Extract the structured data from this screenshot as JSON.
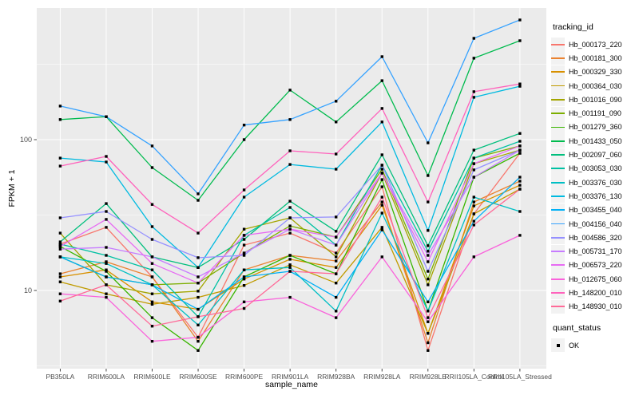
{
  "chart_data": {
    "type": "line",
    "title": "",
    "xlabel": "sample_name",
    "ylabel": "FPKM + 1",
    "y_scale": "log10",
    "ylim": [
      3.0,
      750
    ],
    "grid": true,
    "panel_bg": "#EBEBEB",
    "grid_color": "#FFFFFF",
    "tick_color": "#333333",
    "tick_label_color": "#4D4D4D",
    "marker_color": "#000000",
    "marker_shape": "square",
    "y_ticks": [
      {
        "label": "100",
        "value": 100
      },
      {
        "label": "10",
        "value": 10
      }
    ],
    "y_minor_gridlines": [
      3.162,
      31.62,
      316.2
    ],
    "categories": [
      "PB350LA",
      "RRIM600LA",
      "RRIM600LE",
      "RRIM600SE",
      "RRIM600PE",
      "RRIM901LA",
      "RRIM928BA",
      "RRIM928LA",
      "RRIM928LE",
      "RRII105LA_Control",
      "RRII105LA_Stressed"
    ],
    "legend": {
      "title": "tracking_id",
      "position": "right"
    },
    "quant_legend": {
      "title": "quant_status",
      "items": [
        {
          "label": "OK",
          "marker": "black-square"
        }
      ]
    },
    "series": [
      {
        "name": "Hb_000173_220",
        "color": "#F8766D",
        "values": [
          20.3,
          26.2,
          12.3,
          4.9,
          20.0,
          24.0,
          17.7,
          48.7,
          4.0,
          32.2,
          81.3
        ]
      },
      {
        "name": "Hb_000181_300",
        "color": "#EA8331",
        "values": [
          12.9,
          15.5,
          12.3,
          4.6,
          13.7,
          17.1,
          15.7,
          38.6,
          4.5,
          38.6,
          53.1
        ]
      },
      {
        "name": "Hb_000329_330",
        "color": "#D89000",
        "values": [
          12.3,
          13.7,
          8.4,
          7.5,
          11.9,
          16.1,
          14.2,
          36.8,
          5.2,
          36.4,
          49.9
        ]
      },
      {
        "name": "Hb_000364_030",
        "color": "#C09B00",
        "values": [
          11.4,
          9.5,
          8.1,
          9.0,
          10.8,
          14.8,
          11.2,
          26.2,
          5.2,
          32.2,
          47.0
        ]
      },
      {
        "name": "Hb_001016_090",
        "color": "#A3A500",
        "values": [
          24.0,
          10.9,
          9.5,
          9.9,
          25.5,
          30.3,
          16.7,
          60.0,
          10.9,
          69.3,
          85.3
        ]
      },
      {
        "name": "Hb_001191_090",
        "color": "#7CAE00",
        "values": [
          16.7,
          12.3,
          10.9,
          11.2,
          17.7,
          26.8,
          22.6,
          63.7,
          11.9,
          75.5,
          90.8
        ]
      },
      {
        "name": "Hb_001279_360",
        "color": "#39B600",
        "values": [
          19.6,
          13.4,
          6.6,
          4.0,
          12.3,
          17.1,
          12.9,
          54.3,
          7.3,
          56.4,
          81.3
        ]
      },
      {
        "name": "Hb_001433_050",
        "color": "#00BB4E",
        "values": [
          136,
          142,
          65.3,
          39.6,
          100,
          213,
          131,
          246,
          57.8,
          347,
          453
        ]
      },
      {
        "name": "Hb_002097_060",
        "color": "#00BF7D",
        "values": [
          21.0,
          37.7,
          16.7,
          14.2,
          21.8,
          39.1,
          24.7,
          79.3,
          19.8,
          85.3,
          110
        ]
      },
      {
        "name": "Hb_003053_030",
        "color": "#00C1A3",
        "values": [
          20.3,
          17.1,
          13.7,
          6.7,
          23.2,
          35.5,
          20.0,
          67.7,
          18.2,
          75.5,
          97.6
        ]
      },
      {
        "name": "Hb_003376_030",
        "color": "#00BFC4",
        "values": [
          16.7,
          15.1,
          10.9,
          5.9,
          13.7,
          14.2,
          7.3,
          32.6,
          7.3,
          41.6,
          33.4
        ]
      },
      {
        "name": "Hb_003376_130",
        "color": "#00BAE0",
        "values": [
          75.5,
          71.1,
          26.5,
          14.2,
          41.6,
          68.5,
          63.7,
          131,
          25.0,
          191,
          226
        ]
      },
      {
        "name": "Hb_003455_040",
        "color": "#00B0F6",
        "values": [
          16.7,
          12.3,
          10.9,
          7.5,
          12.3,
          13.4,
          9.0,
          25.2,
          8.4,
          28.8,
          56.4
        ]
      },
      {
        "name": "Hb_004156_040",
        "color": "#35A2FF",
        "values": [
          167,
          142,
          90.8,
          43.7,
          125,
          136,
          180,
          355,
          95.3,
          470,
          622
        ]
      },
      {
        "name": "Hb_004586_320",
        "color": "#9590FF",
        "values": [
          30.3,
          33.4,
          21.8,
          16.5,
          17.1,
          30.3,
          30.7,
          67.7,
          13.4,
          63.0,
          85.3
        ]
      },
      {
        "name": "Hb_005731_170",
        "color": "#C77CFF",
        "values": [
          18.8,
          19.3,
          16.7,
          12.3,
          17.7,
          25.5,
          20.0,
          60.0,
          17.1,
          56.4,
          85.3
        ]
      },
      {
        "name": "Hb_006573_220",
        "color": "#E76BF3",
        "values": [
          19.6,
          29.6,
          15.1,
          11.2,
          23.2,
          25.5,
          22.6,
          60.0,
          15.5,
          69.3,
          90.8
        ]
      },
      {
        "name": "Hb_012675_060",
        "color": "#FA62DB",
        "values": [
          9.5,
          9.0,
          4.6,
          4.9,
          8.4,
          9.0,
          6.6,
          16.7,
          6.2,
          16.7,
          23.2
        ]
      },
      {
        "name": "Hb_148200_010",
        "color": "#FF62BC",
        "values": [
          66.8,
          77.4,
          37.2,
          24.0,
          46.4,
          84.3,
          80.3,
          161,
          38.6,
          208,
          234
        ]
      },
      {
        "name": "Hb_148930_010",
        "color": "#FF6A98",
        "values": [
          8.5,
          10.9,
          5.8,
          6.7,
          7.6,
          13.4,
          12.9,
          41.6,
          6.6,
          27.2,
          47.0
        ]
      }
    ]
  }
}
